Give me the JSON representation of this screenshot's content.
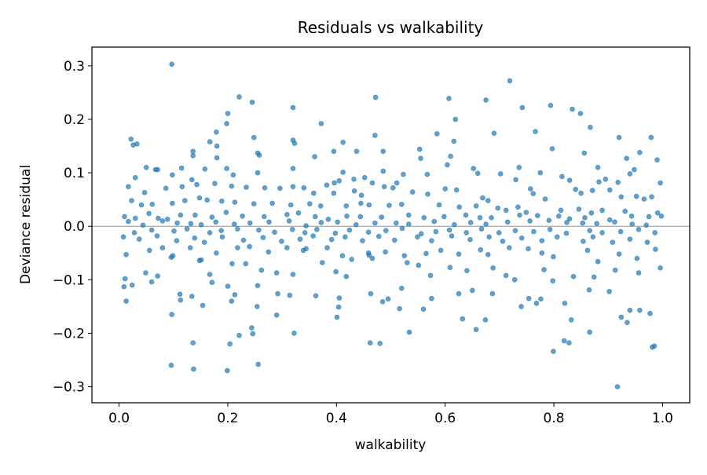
{
  "chart_data": {
    "type": "scatter",
    "title": "Residuals vs walkability",
    "xlabel": "walkability",
    "ylabel": "Deviance residual",
    "xlim": [
      -0.05,
      1.05
    ],
    "ylim": [
      -0.33,
      0.335
    ],
    "x_ticks": [
      0.0,
      0.2,
      0.4,
      0.6,
      0.8,
      1.0
    ],
    "x_tick_labels": [
      "0.0",
      "0.2",
      "0.4",
      "0.6",
      "0.8",
      "1.0"
    ],
    "y_ticks": [
      -0.3,
      -0.2,
      -0.1,
      0.0,
      0.1,
      0.2,
      0.3
    ],
    "y_tick_labels": [
      "−0.3",
      "−0.2",
      "−0.1",
      "0.0",
      "0.1",
      "0.2",
      "0.3"
    ],
    "reference_line_y": 0.0,
    "grid": false,
    "point_color": "#1f77b4",
    "reference_line_color": "#808080",
    "points": [
      [
        0.097,
        0.303
      ],
      [
        0.719,
        0.272
      ],
      [
        0.221,
        0.242
      ],
      [
        0.472,
        0.241
      ],
      [
        0.607,
        0.239
      ],
      [
        0.675,
        0.236
      ],
      [
        0.245,
        0.232
      ],
      [
        0.742,
        0.222
      ],
      [
        0.32,
        0.222
      ],
      [
        0.794,
        0.226
      ],
      [
        0.834,
        0.219
      ],
      [
        0.849,
        0.211
      ],
      [
        0.2,
        0.211
      ],
      [
        0.619,
        0.2
      ],
      [
        0.198,
        0.192
      ],
      [
        0.372,
        0.192
      ],
      [
        0.867,
        0.185
      ],
      [
        0.766,
        0.177
      ],
      [
        0.179,
        0.176
      ],
      [
        0.167,
        0.158
      ],
      [
        0.412,
        0.157
      ],
      [
        0.69,
        0.174
      ],
      [
        0.585,
        0.173
      ],
      [
        0.471,
        0.17
      ],
      [
        0.248,
        0.166
      ],
      [
        0.92,
        0.166
      ],
      [
        0.979,
        0.166
      ],
      [
        0.022,
        0.163
      ],
      [
        0.32,
        0.161
      ],
      [
        0.616,
        0.159
      ],
      [
        0.323,
        0.155
      ],
      [
        0.026,
        0.152
      ],
      [
        0.033,
        0.154
      ],
      [
        0.18,
        0.15
      ],
      [
        0.136,
        0.14
      ],
      [
        0.395,
        0.14
      ],
      [
        0.437,
        0.14
      ],
      [
        0.486,
        0.14
      ],
      [
        0.553,
        0.144
      ],
      [
        0.797,
        0.145
      ],
      [
        0.958,
        0.138
      ],
      [
        0.856,
        0.137
      ],
      [
        0.255,
        0.137
      ],
      [
        0.258,
        0.133
      ],
      [
        0.136,
        0.132
      ],
      [
        0.36,
        0.13
      ],
      [
        0.18,
        0.128
      ],
      [
        0.61,
        0.131
      ],
      [
        0.934,
        0.127
      ],
      [
        0.99,
        0.124
      ],
      [
        0.555,
        0.127
      ],
      [
        0.736,
        0.11
      ],
      [
        0.604,
        0.115
      ],
      [
        0.652,
        0.108
      ],
      [
        0.881,
        0.11
      ],
      [
        0.948,
        0.106
      ],
      [
        0.05,
        0.11
      ],
      [
        0.067,
        0.106
      ],
      [
        0.115,
        0.109
      ],
      [
        0.158,
        0.107
      ],
      [
        0.198,
        0.108
      ],
      [
        0.255,
        0.1
      ],
      [
        0.32,
        0.108
      ],
      [
        0.486,
        0.103
      ],
      [
        0.523,
        0.097
      ],
      [
        0.567,
        0.097
      ],
      [
        0.815,
        0.093
      ],
      [
        0.895,
        0.088
      ],
      [
        0.94,
        0.098
      ],
      [
        0.775,
        0.1
      ],
      [
        0.702,
        0.098
      ],
      [
        0.66,
        0.099
      ],
      [
        0.412,
        0.101
      ],
      [
        0.03,
        0.091
      ],
      [
        0.098,
        0.096
      ],
      [
        0.071,
        0.106
      ],
      [
        0.21,
        0.096
      ],
      [
        0.134,
        0.087
      ],
      [
        0.143,
        0.078
      ],
      [
        0.176,
        0.08
      ],
      [
        0.432,
        0.088
      ],
      [
        0.452,
        0.091
      ],
      [
        0.466,
        0.081
      ],
      [
        0.511,
        0.081
      ],
      [
        0.73,
        0.087
      ],
      [
        0.829,
        0.086
      ],
      [
        0.883,
        0.083
      ],
      [
        0.918,
        0.082
      ],
      [
        0.996,
        0.081
      ],
      [
        0.382,
        0.077
      ],
      [
        0.396,
        0.081
      ],
      [
        0.405,
        0.085
      ],
      [
        0.433,
        0.066
      ],
      [
        0.6,
        0.07
      ],
      [
        0.621,
        0.068
      ],
      [
        0.757,
        0.07
      ],
      [
        0.84,
        0.069
      ],
      [
        0.903,
        0.068
      ],
      [
        0.017,
        0.074
      ],
      [
        0.047,
        0.063
      ],
      [
        0.086,
        0.071
      ],
      [
        0.116,
        0.074
      ],
      [
        0.207,
        0.075
      ],
      [
        0.234,
        0.073
      ],
      [
        0.268,
        0.072
      ],
      [
        0.296,
        0.071
      ],
      [
        0.32,
        0.074
      ],
      [
        0.34,
        0.072
      ],
      [
        0.358,
        0.062
      ],
      [
        0.395,
        0.062
      ],
      [
        0.446,
        0.058
      ],
      [
        0.488,
        0.074
      ],
      [
        0.504,
        0.072
      ],
      [
        0.54,
        0.064
      ],
      [
        0.568,
        0.06
      ],
      [
        0.669,
        0.053
      ],
      [
        0.679,
        0.048
      ],
      [
        0.762,
        0.061
      ],
      [
        0.784,
        0.051
      ],
      [
        0.85,
        0.062
      ],
      [
        0.871,
        0.067
      ],
      [
        0.924,
        0.055
      ],
      [
        0.952,
        0.056
      ],
      [
        0.966,
        0.051
      ],
      [
        0.98,
        0.055
      ],
      [
        0.023,
        0.048
      ],
      [
        0.041,
        0.04
      ],
      [
        0.061,
        0.041
      ],
      [
        0.098,
        0.043
      ],
      [
        0.121,
        0.048
      ],
      [
        0.148,
        0.053
      ],
      [
        0.162,
        0.049
      ],
      [
        0.189,
        0.047
      ],
      [
        0.213,
        0.045
      ],
      [
        0.248,
        0.042
      ],
      [
        0.282,
        0.043
      ],
      [
        0.316,
        0.04
      ],
      [
        0.351,
        0.042
      ],
      [
        0.371,
        0.038
      ],
      [
        0.418,
        0.038
      ],
      [
        0.445,
        0.043
      ],
      [
        0.46,
        0.04
      ],
      [
        0.497,
        0.039
      ],
      [
        0.52,
        0.041
      ],
      [
        0.589,
        0.04
      ],
      [
        0.626,
        0.036
      ],
      [
        0.657,
        0.038
      ],
      [
        0.697,
        0.034
      ],
      [
        0.712,
        0.03
      ],
      [
        0.734,
        0.036
      ],
      [
        0.749,
        0.026
      ],
      [
        0.813,
        0.03
      ],
      [
        0.846,
        0.032
      ],
      [
        0.869,
        0.025
      ],
      [
        0.889,
        0.03
      ],
      [
        0.931,
        0.028
      ],
      [
        0.991,
        0.025
      ],
      [
        0.01,
        0.018
      ],
      [
        0.03,
        0.015
      ],
      [
        0.055,
        0.024
      ],
      [
        0.072,
        0.015
      ],
      [
        0.089,
        0.013
      ],
      [
        0.113,
        0.021
      ],
      [
        0.14,
        0.021
      ],
      [
        0.171,
        0.017
      ],
      [
        0.197,
        0.026
      ],
      [
        0.227,
        0.019
      ],
      [
        0.267,
        0.018
      ],
      [
        0.309,
        0.022
      ],
      [
        0.33,
        0.025
      ],
      [
        0.361,
        0.018
      ],
      [
        0.385,
        0.013
      ],
      [
        0.419,
        0.019
      ],
      [
        0.444,
        0.018
      ],
      [
        0.483,
        0.017
      ],
      [
        0.533,
        0.021
      ],
      [
        0.561,
        0.016
      ],
      [
        0.598,
        0.018
      ],
      [
        0.638,
        0.021
      ],
      [
        0.664,
        0.016
      ],
      [
        0.685,
        0.016
      ],
      [
        0.737,
        0.021
      ],
      [
        0.77,
        0.02
      ],
      [
        0.809,
        0.019
      ],
      [
        0.829,
        0.014
      ],
      [
        0.857,
        0.016
      ],
      [
        0.903,
        0.012
      ],
      [
        0.943,
        0.019
      ],
      [
        0.975,
        0.018
      ],
      [
        0.998,
        0.019
      ],
      [
        0.017,
        0.009
      ],
      [
        0.044,
        0.002
      ],
      [
        0.08,
        0.01
      ],
      [
        0.107,
        0.006
      ],
      [
        0.132,
        0.005
      ],
      [
        0.151,
        0.003
      ],
      [
        0.178,
        0.008
      ],
      [
        0.212,
        0.004
      ],
      [
        0.241,
        0.006
      ],
      [
        0.276,
        0.008
      ],
      [
        0.313,
        0.01
      ],
      [
        0.344,
        0.001
      ],
      [
        0.372,
        0.007
      ],
      [
        0.402,
        0.008
      ],
      [
        0.436,
        0.003
      ],
      [
        0.471,
        0.006
      ],
      [
        0.51,
        0.006
      ],
      [
        0.533,
        0.004
      ],
      [
        0.58,
        0.009
      ],
      [
        0.617,
        0.003
      ],
      [
        0.647,
        0.007
      ],
      [
        0.675,
        0.004
      ],
      [
        0.715,
        0.008
      ],
      [
        0.756,
        0.01
      ],
      [
        0.791,
        0.011
      ],
      [
        0.824,
        0.007
      ],
      [
        0.853,
        0.006
      ],
      [
        0.879,
        0.005
      ],
      [
        0.912,
        0.008
      ],
      [
        0.944,
        0.004
      ],
      [
        0.97,
        0.002
      ],
      [
        0.028,
        -0.012
      ],
      [
        0.06,
        -0.007
      ],
      [
        0.101,
        -0.009
      ],
      [
        0.125,
        -0.005
      ],
      [
        0.167,
        -0.012
      ],
      [
        0.188,
        -0.008
      ],
      [
        0.218,
        -0.005
      ],
      [
        0.257,
        -0.007
      ],
      [
        0.286,
        -0.011
      ],
      [
        0.319,
        -0.006
      ],
      [
        0.342,
        -0.012
      ],
      [
        0.364,
        -0.006
      ],
      [
        0.398,
        -0.013
      ],
      [
        0.424,
        -0.007
      ],
      [
        0.459,
        -0.011
      ],
      [
        0.491,
        -0.008
      ],
      [
        0.521,
        -0.004
      ],
      [
        0.556,
        -0.014
      ],
      [
        0.583,
        -0.01
      ],
      [
        0.608,
        -0.007
      ],
      [
        0.639,
        -0.012
      ],
      [
        0.667,
        -0.005
      ],
      [
        0.699,
        -0.012
      ],
      [
        0.729,
        -0.008
      ],
      [
        0.763,
        -0.01
      ],
      [
        0.793,
        -0.006
      ],
      [
        0.823,
        -0.013
      ],
      [
        0.866,
        -0.008
      ],
      [
        0.889,
        -0.012
      ],
      [
        0.923,
        -0.01
      ],
      [
        0.956,
        -0.006
      ],
      [
        0.986,
        -0.012
      ],
      [
        0.008,
        -0.02
      ],
      [
        0.037,
        -0.024
      ],
      [
        0.07,
        -0.018
      ],
      [
        0.106,
        -0.027
      ],
      [
        0.139,
        -0.022
      ],
      [
        0.157,
        -0.03
      ],
      [
        0.19,
        -0.02
      ],
      [
        0.229,
        -0.026
      ],
      [
        0.265,
        -0.021
      ],
      [
        0.299,
        -0.028
      ],
      [
        0.333,
        -0.024
      ],
      [
        0.357,
        -0.018
      ],
      [
        0.391,
        -0.025
      ],
      [
        0.416,
        -0.02
      ],
      [
        0.448,
        -0.027
      ],
      [
        0.478,
        -0.019
      ],
      [
        0.507,
        -0.026
      ],
      [
        0.549,
        -0.02
      ],
      [
        0.575,
        -0.027
      ],
      [
        0.612,
        -0.018
      ],
      [
        0.646,
        -0.025
      ],
      [
        0.681,
        -0.02
      ],
      [
        0.706,
        -0.028
      ],
      [
        0.741,
        -0.022
      ],
      [
        0.778,
        -0.027
      ],
      [
        0.806,
        -0.02
      ],
      [
        0.854,
        -0.028
      ],
      [
        0.872,
        -0.02
      ],
      [
        0.908,
        -0.03
      ],
      [
        0.94,
        -0.024
      ],
      [
        0.972,
        -0.03
      ],
      [
        0.013,
        -0.053
      ],
      [
        0.056,
        -0.045
      ],
      [
        0.08,
        -0.04
      ],
      [
        0.096,
        -0.058
      ],
      [
        0.131,
        -0.04
      ],
      [
        0.151,
        -0.063
      ],
      [
        0.179,
        -0.05
      ],
      [
        0.218,
        -0.04
      ],
      [
        0.24,
        -0.038
      ],
      [
        0.275,
        -0.048
      ],
      [
        0.309,
        -0.04
      ],
      [
        0.339,
        -0.045
      ],
      [
        0.344,
        -0.042
      ],
      [
        0.383,
        -0.04
      ],
      [
        0.411,
        -0.055
      ],
      [
        0.428,
        -0.062
      ],
      [
        0.459,
        -0.05
      ],
      [
        0.49,
        -0.048
      ],
      [
        0.525,
        -0.055
      ],
      [
        0.565,
        -0.051
      ],
      [
        0.592,
        -0.045
      ],
      [
        0.625,
        -0.052
      ],
      [
        0.665,
        -0.044
      ],
      [
        0.679,
        -0.053
      ],
      [
        0.718,
        -0.04
      ],
      [
        0.753,
        -0.042
      ],
      [
        0.778,
        -0.05
      ],
      [
        0.799,
        -0.057
      ],
      [
        0.862,
        -0.045
      ],
      [
        0.881,
        -0.066
      ],
      [
        0.92,
        -0.052
      ],
      [
        0.953,
        -0.06
      ],
      [
        0.987,
        -0.043
      ],
      [
        0.011,
        -0.098
      ],
      [
        0.049,
        -0.087
      ],
      [
        0.071,
        -0.093
      ],
      [
        0.099,
        -0.055
      ],
      [
        0.148,
        -0.064
      ],
      [
        0.167,
        -0.09
      ],
      [
        0.208,
        -0.07
      ],
      [
        0.233,
        -0.07
      ],
      [
        0.262,
        -0.082
      ],
      [
        0.29,
        -0.087
      ],
      [
        0.32,
        -0.09
      ],
      [
        0.374,
        -0.068
      ],
      [
        0.399,
        -0.085
      ],
      [
        0.418,
        -0.094
      ],
      [
        0.46,
        -0.054
      ],
      [
        0.466,
        -0.06
      ],
      [
        0.53,
        -0.068
      ],
      [
        0.551,
        -0.073
      ],
      [
        0.573,
        -0.092
      ],
      [
        0.609,
        -0.077
      ],
      [
        0.64,
        -0.083
      ],
      [
        0.688,
        -0.078
      ],
      [
        0.712,
        -0.092
      ],
      [
        0.728,
        -0.1
      ],
      [
        0.782,
        -0.081
      ],
      [
        0.836,
        -0.094
      ],
      [
        0.874,
        -0.095
      ],
      [
        0.913,
        -0.082
      ],
      [
        0.956,
        -0.087
      ],
      [
        0.996,
        -0.078
      ],
      [
        0.009,
        -0.113
      ],
      [
        0.024,
        -0.11
      ],
      [
        0.06,
        -0.104
      ],
      [
        0.112,
        -0.127
      ],
      [
        0.134,
        -0.131
      ],
      [
        0.171,
        -0.105
      ],
      [
        0.2,
        -0.112
      ],
      [
        0.213,
        -0.128
      ],
      [
        0.255,
        -0.111
      ],
      [
        0.292,
        -0.126
      ],
      [
        0.314,
        -0.129
      ],
      [
        0.362,
        -0.13
      ],
      [
        0.405,
        -0.134
      ],
      [
        0.463,
        -0.126
      ],
      [
        0.495,
        -0.136
      ],
      [
        0.52,
        -0.116
      ],
      [
        0.575,
        -0.135
      ],
      [
        0.625,
        -0.126
      ],
      [
        0.65,
        -0.12
      ],
      [
        0.687,
        -0.126
      ],
      [
        0.754,
        -0.135
      ],
      [
        0.768,
        -0.144
      ],
      [
        0.798,
        -0.102
      ],
      [
        0.82,
        -0.144
      ],
      [
        0.865,
        -0.119
      ],
      [
        0.902,
        -0.122
      ],
      [
        0.94,
        -0.157
      ],
      [
        0.013,
        -0.14
      ],
      [
        0.113,
        -0.138
      ],
      [
        0.154,
        -0.148
      ],
      [
        0.207,
        -0.14
      ],
      [
        0.254,
        -0.15
      ],
      [
        0.29,
        -0.166
      ],
      [
        0.404,
        -0.151
      ],
      [
        0.485,
        -0.141
      ],
      [
        0.516,
        -0.154
      ],
      [
        0.56,
        -0.155
      ],
      [
        0.632,
        -0.173
      ],
      [
        0.674,
        -0.175
      ],
      [
        0.74,
        -0.15
      ],
      [
        0.776,
        -0.136
      ],
      [
        0.832,
        -0.175
      ],
      [
        0.924,
        -0.17
      ],
      [
        0.958,
        -0.157
      ],
      [
        0.097,
        -0.165
      ],
      [
        0.244,
        -0.19
      ],
      [
        0.246,
        -0.201
      ],
      [
        0.322,
        -0.2
      ],
      [
        0.401,
        -0.17
      ],
      [
        0.534,
        -0.198
      ],
      [
        0.657,
        -0.193
      ],
      [
        0.799,
        -0.234
      ],
      [
        0.866,
        -0.198
      ],
      [
        0.935,
        -0.18
      ],
      [
        0.977,
        -0.163
      ],
      [
        0.221,
        -0.204
      ],
      [
        0.136,
        -0.218
      ],
      [
        0.462,
        -0.218
      ],
      [
        0.48,
        -0.219
      ],
      [
        0.819,
        -0.214
      ],
      [
        0.828,
        -0.218
      ],
      [
        0.985,
        -0.224
      ],
      [
        0.981,
        -0.226
      ],
      [
        0.096,
        -0.26
      ],
      [
        0.137,
        -0.267
      ],
      [
        0.204,
        -0.22
      ],
      [
        0.256,
        -0.258
      ],
      [
        0.199,
        -0.27
      ],
      [
        0.917,
        -0.3
      ]
    ]
  }
}
